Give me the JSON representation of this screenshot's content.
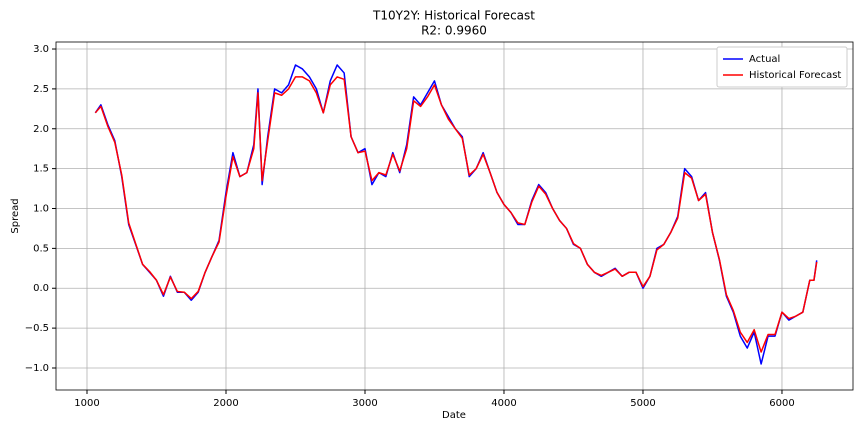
{
  "chart_data": {
    "type": "line",
    "title": "T10Y2Y: Historical Forecast",
    "subtitle": "R2: 0.9960",
    "x_label": "Date",
    "y_label": "Spread",
    "x": [
      1060,
      1100,
      1150,
      1200,
      1250,
      1300,
      1350,
      1400,
      1450,
      1500,
      1550,
      1600,
      1650,
      1700,
      1750,
      1800,
      1850,
      1900,
      1950,
      2000,
      2050,
      2100,
      2150,
      2200,
      2230,
      2260,
      2300,
      2350,
      2400,
      2450,
      2500,
      2550,
      2600,
      2650,
      2700,
      2750,
      2800,
      2850,
      2900,
      2950,
      3000,
      3050,
      3100,
      3150,
      3200,
      3250,
      3300,
      3350,
      3400,
      3450,
      3500,
      3550,
      3600,
      3650,
      3700,
      3750,
      3800,
      3850,
      3900,
      3950,
      4000,
      4050,
      4100,
      4150,
      4200,
      4250,
      4300,
      4350,
      4400,
      4450,
      4500,
      4550,
      4600,
      4650,
      4700,
      4750,
      4800,
      4850,
      4900,
      4950,
      5000,
      5050,
      5100,
      5150,
      5200,
      5250,
      5300,
      5350,
      5400,
      5450,
      5500,
      5550,
      5600,
      5650,
      5700,
      5750,
      5800,
      5850,
      5900,
      5950,
      6000,
      6050,
      6100,
      6150,
      6200,
      6230,
      6250
    ],
    "series": [
      {
        "name": "Actual",
        "color": "#0000ff",
        "values": [
          2.2,
          2.3,
          2.05,
          1.85,
          1.4,
          0.8,
          0.55,
          0.3,
          0.2,
          0.1,
          -0.1,
          0.15,
          -0.05,
          -0.05,
          -0.15,
          -0.05,
          0.2,
          0.4,
          0.6,
          1.2,
          1.7,
          1.4,
          1.45,
          1.8,
          2.5,
          1.3,
          1.9,
          2.5,
          2.45,
          2.55,
          2.8,
          2.75,
          2.65,
          2.5,
          2.2,
          2.6,
          2.8,
          2.7,
          1.9,
          1.7,
          1.75,
          1.3,
          1.45,
          1.4,
          1.7,
          1.45,
          1.8,
          2.4,
          2.3,
          2.45,
          2.6,
          2.3,
          2.15,
          2.0,
          1.9,
          1.4,
          1.5,
          1.7,
          1.45,
          1.2,
          1.05,
          0.95,
          0.8,
          0.8,
          1.1,
          1.3,
          1.2,
          1.0,
          0.85,
          0.75,
          0.55,
          0.5,
          0.3,
          0.2,
          0.15,
          0.2,
          0.25,
          0.15,
          0.2,
          0.2,
          0.0,
          0.15,
          0.5,
          0.55,
          0.7,
          0.9,
          1.5,
          1.4,
          1.1,
          1.2,
          0.7,
          0.35,
          -0.1,
          -0.3,
          -0.6,
          -0.75,
          -0.55,
          -0.95,
          -0.6,
          -0.6,
          -0.3,
          -0.4,
          -0.35,
          -0.3,
          0.1,
          0.1,
          0.35
        ]
      },
      {
        "name": "Historical Forecast",
        "color": "#ff0000",
        "values": [
          2.2,
          2.28,
          2.03,
          1.83,
          1.42,
          0.82,
          0.56,
          0.3,
          0.21,
          0.1,
          -0.08,
          0.14,
          -0.04,
          -0.05,
          -0.13,
          -0.04,
          0.2,
          0.4,
          0.58,
          1.15,
          1.65,
          1.4,
          1.45,
          1.75,
          2.45,
          1.35,
          1.85,
          2.45,
          2.42,
          2.5,
          2.65,
          2.65,
          2.6,
          2.45,
          2.2,
          2.55,
          2.65,
          2.62,
          1.9,
          1.7,
          1.72,
          1.35,
          1.45,
          1.42,
          1.68,
          1.47,
          1.75,
          2.35,
          2.28,
          2.4,
          2.55,
          2.3,
          2.12,
          2.0,
          1.88,
          1.42,
          1.5,
          1.68,
          1.45,
          1.2,
          1.05,
          0.95,
          0.82,
          0.8,
          1.08,
          1.28,
          1.18,
          1.0,
          0.85,
          0.75,
          0.56,
          0.5,
          0.3,
          0.2,
          0.16,
          0.2,
          0.24,
          0.15,
          0.2,
          0.2,
          0.02,
          0.15,
          0.48,
          0.55,
          0.7,
          0.88,
          1.45,
          1.38,
          1.1,
          1.18,
          0.7,
          0.36,
          -0.08,
          -0.28,
          -0.55,
          -0.68,
          -0.52,
          -0.8,
          -0.58,
          -0.58,
          -0.3,
          -0.38,
          -0.35,
          -0.3,
          0.1,
          0.1,
          0.33
        ]
      }
    ],
    "xlim": [
      777,
      6511
    ],
    "ylim": [
      -1.276,
      3.088
    ],
    "xticks": [
      1000,
      2000,
      3000,
      4000,
      5000,
      6000
    ],
    "yticks": [
      {
        "value": -1.0,
        "label": "−1.0"
      },
      {
        "value": -0.5,
        "label": "−0.5"
      },
      {
        "value": 0.0,
        "label": "0.0"
      },
      0.5,
      {
        "value": 1.0,
        "label": "1.0"
      },
      1.5,
      {
        "value": 2.0,
        "label": "2.0"
      },
      2.5,
      {
        "value": 3.0,
        "label": "3.0"
      }
    ],
    "grid": true,
    "legend": "upper right"
  }
}
